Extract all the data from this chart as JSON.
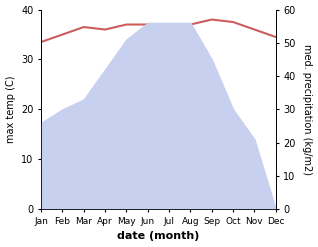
{
  "months": [
    "Jan",
    "Feb",
    "Mar",
    "Apr",
    "May",
    "Jun",
    "Jul",
    "Aug",
    "Sep",
    "Oct",
    "Nov",
    "Dec"
  ],
  "temperature_C": [
    33.5,
    35.0,
    36.5,
    36.0,
    37.0,
    37.0,
    36.5,
    37.0,
    38.0,
    37.5,
    36.0,
    34.5
  ],
  "precipitation_mm": [
    26,
    30,
    33,
    42,
    51,
    56,
    56,
    56,
    45,
    30,
    21,
    0
  ],
  "temp_color": "#cd5c5c",
  "precip_color": "#c8d0ef",
  "left_ylim": [
    0,
    40
  ],
  "right_ylim": [
    0,
    60
  ],
  "left_ylabel": "max temp (C)",
  "right_ylabel": "med. precipitation (kg/m2)",
  "xlabel": "date (month)",
  "left_yticks": [
    0,
    10,
    20,
    30,
    40
  ],
  "right_yticks": [
    0,
    10,
    20,
    30,
    40,
    50,
    60
  ]
}
